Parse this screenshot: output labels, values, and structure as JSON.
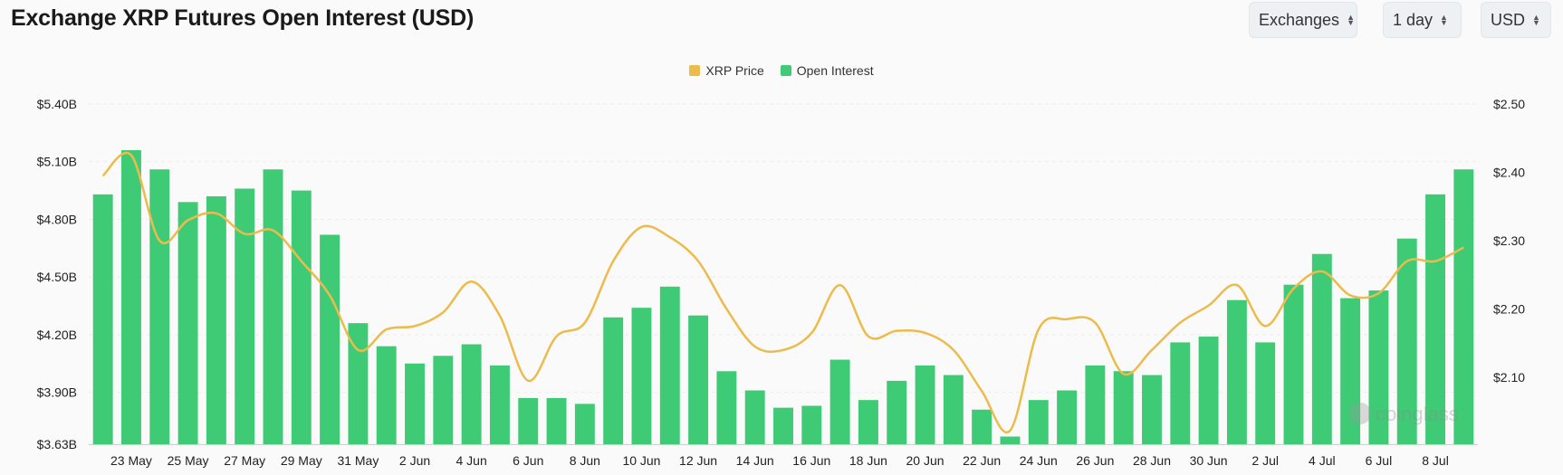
{
  "header": {
    "title": "Exchange XRP Futures Open Interest (USD)",
    "selectors": [
      {
        "label": "Exchanges"
      },
      {
        "label": "1 day"
      },
      {
        "label": "USD"
      }
    ]
  },
  "watermark": "coinglass",
  "colors": {
    "bar": "#3fca76",
    "line": "#ecbb4c",
    "grid": "#ececec"
  },
  "chart_data": {
    "type": "bar",
    "legend": [
      {
        "name": "XRP Price",
        "color": "#ecbb4c",
        "kind": "line"
      },
      {
        "name": "Open Interest",
        "color": "#3fca76",
        "kind": "bar"
      }
    ],
    "legend_position": "top-center",
    "grid": true,
    "y_left": {
      "min": 3.63,
      "max": 5.4,
      "ticks": [
        5.4,
        5.1,
        4.8,
        4.5,
        4.2,
        3.9,
        3.63
      ],
      "tick_labels": [
        "$5.40B",
        "$5.10B",
        "$4.80B",
        "$4.50B",
        "$4.20B",
        "$3.90B",
        "$3.63B"
      ]
    },
    "y_right": {
      "min": 2.002,
      "max": 2.5,
      "ticks": [
        2.5,
        2.4,
        2.3,
        2.2,
        2.1
      ],
      "tick_labels": [
        "$2.50",
        "$2.40",
        "$2.30",
        "$2.20",
        "$2.10"
      ]
    },
    "x_tick_labels": [
      "23 May",
      "25 May",
      "27 May",
      "29 May",
      "31 May",
      "2 Jun",
      "4 Jun",
      "6 Jun",
      "8 Jun",
      "10 Jun",
      "12 Jun",
      "14 Jun",
      "16 Jun",
      "18 Jun",
      "20 Jun",
      "22 Jun",
      "24 Jun",
      "26 Jun",
      "28 Jun",
      "30 Jun",
      "2 Jul",
      "4 Jul",
      "6 Jul",
      "8 Jul"
    ],
    "x_tick_every": 2,
    "x_tick_offset": 1,
    "categories": [
      "22 May",
      "23 May",
      "24 May",
      "25 May",
      "26 May",
      "27 May",
      "28 May",
      "29 May",
      "30 May",
      "31 May",
      "1 Jun",
      "2 Jun",
      "3 Jun",
      "4 Jun",
      "5 Jun",
      "6 Jun",
      "7 Jun",
      "8 Jun",
      "9 Jun",
      "10 Jun",
      "11 Jun",
      "12 Jun",
      "13 Jun",
      "14 Jun",
      "15 Jun",
      "16 Jun",
      "17 Jun",
      "18 Jun",
      "19 Jun",
      "20 Jun",
      "21 Jun",
      "22 Jun",
      "23 Jun",
      "24 Jun",
      "25 Jun",
      "26 Jun",
      "27 Jun",
      "28 Jun",
      "29 Jun",
      "30 Jun",
      "1 Jul",
      "2 Jul",
      "3 Jul",
      "4 Jul",
      "5 Jul",
      "6 Jul",
      "7 Jul",
      "8 Jul",
      "9 Jul"
    ],
    "series": [
      {
        "name": "Open Interest",
        "unit": "USD billions",
        "values": [
          4.93,
          5.16,
          5.06,
          4.89,
          4.92,
          4.96,
          5.06,
          4.95,
          4.72,
          4.26,
          4.14,
          4.05,
          4.09,
          4.15,
          4.04,
          3.87,
          3.87,
          3.84,
          4.29,
          4.34,
          4.45,
          4.3,
          4.01,
          3.91,
          3.82,
          3.83,
          4.07,
          3.86,
          3.96,
          4.04,
          3.99,
          3.81,
          3.67,
          3.86,
          3.91,
          4.04,
          4.01,
          3.99,
          4.16,
          4.19,
          4.38,
          4.16,
          4.46,
          4.62,
          4.39,
          4.43,
          4.7,
          4.93,
          5.06
        ]
      },
      {
        "name": "XRP Price",
        "unit": "USD",
        "values": [
          2.395,
          2.425,
          2.3,
          2.33,
          2.34,
          2.31,
          2.315,
          2.27,
          2.22,
          2.14,
          2.17,
          2.175,
          2.195,
          2.24,
          2.19,
          2.095,
          2.16,
          2.18,
          2.27,
          2.32,
          2.305,
          2.27,
          2.2,
          2.145,
          2.14,
          2.165,
          2.235,
          2.16,
          2.168,
          2.165,
          2.14,
          2.08,
          2.022,
          2.17,
          2.185,
          2.18,
          2.105,
          2.14,
          2.18,
          2.205,
          2.235,
          2.175,
          2.23,
          2.255,
          2.22,
          2.223,
          2.27,
          2.27,
          2.29
        ]
      }
    ]
  }
}
